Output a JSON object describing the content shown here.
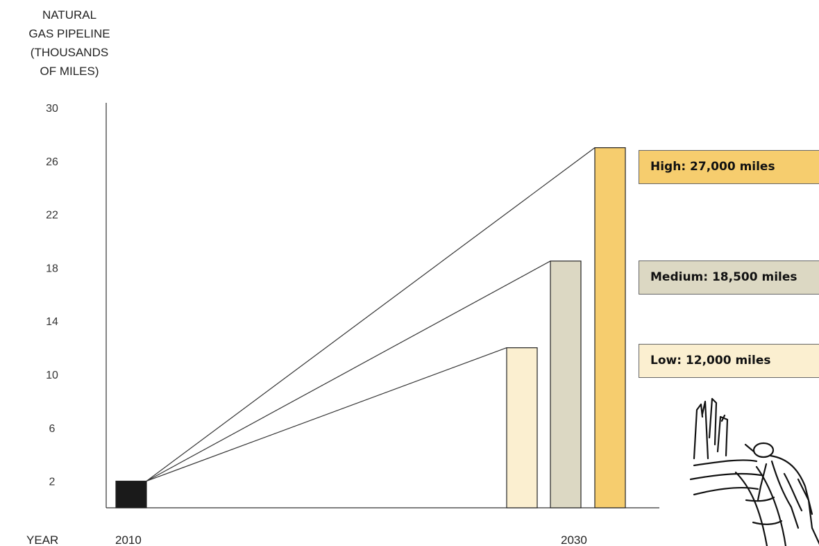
{
  "y_axis_title": [
    "NATURAL",
    "GAS PIPELINE",
    "(THOUSANDS",
    "OF MILES)"
  ],
  "x_axis_title": "YEAR",
  "chart_data": {
    "type": "bar",
    "title": "",
    "xlabel": "YEAR",
    "ylabel": "NATURAL GAS PIPELINE (THOUSANDS OF MILES)",
    "ylim": [
      0,
      30
    ],
    "yticks": [
      2,
      6,
      10,
      14,
      18,
      22,
      26,
      30
    ],
    "x_ticks": [
      "2010",
      "2030"
    ],
    "bars": [
      {
        "label": "2010",
        "value": 2,
        "color": "#1a1a1a"
      },
      {
        "label": "Low",
        "value": 12,
        "color": "#fbefd0"
      },
      {
        "label": "Medium",
        "value": 18.5,
        "color": "#dcd8c3"
      },
      {
        "label": "High",
        "value": 27,
        "color": "#f6cd6e"
      }
    ],
    "legend": [
      {
        "text": "High: 27,000 miles",
        "color": "#f6cd6e"
      },
      {
        "text": "Medium: 18,500 miles",
        "color": "#dcd8c3"
      },
      {
        "text": "Low: 12,000 miles",
        "color": "#fbefd0"
      }
    ],
    "grid": false
  },
  "illustration": {
    "icon": "pipeline-worker-icon"
  }
}
